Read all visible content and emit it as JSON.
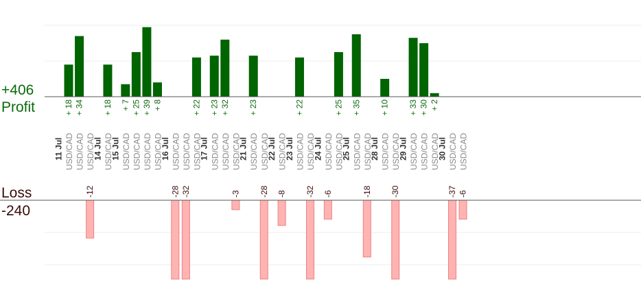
{
  "summary": {
    "profit_total": "+406",
    "profit_label": "Profit",
    "loss_label": "Loss",
    "loss_total": "-240"
  },
  "colors": {
    "profit_bar": "#006400",
    "profit_text": "#0a6b0a",
    "loss_bar": "#ffb3b3",
    "loss_bar_stroke": "#ee8080",
    "loss_text": "#3a0a0a",
    "axis_text": "#888888",
    "date_text": "#333333",
    "grid": "#eeeeee"
  },
  "chart_data": {
    "type": "bar",
    "grid": true,
    "dates": [
      {
        "label": "11 Jul",
        "trades": [
          "USD/CAD",
          "USD/CAD",
          "USD/CAD"
        ]
      },
      {
        "label": "14 Jul",
        "trades": [
          "USD/CAD"
        ]
      },
      {
        "label": "15 Jul",
        "trades": [
          "USD/CAD",
          "USD/CAD",
          "USD/CAD",
          "USD/CAD"
        ]
      },
      {
        "label": "16 Jul",
        "trades": [
          "USD/CAD",
          "USD/CAD",
          "USD/CAD"
        ]
      },
      {
        "label": "17 Jul",
        "trades": [
          "USD/CAD",
          "USD/CAD",
          "USD/CAD"
        ]
      },
      {
        "label": "21 Jul",
        "trades": [
          "USD/CAD",
          "USD/CAD"
        ]
      },
      {
        "label": "22 Jul",
        "trades": [
          "USD/CAD"
        ]
      },
      {
        "label": "23 Jul",
        "trades": [
          "USD/CAD",
          "USD/CAD"
        ]
      },
      {
        "label": "24 Jul",
        "trades": [
          "USD/CAD",
          "USD/CAD"
        ]
      },
      {
        "label": "25 Jul",
        "trades": [
          "USD/CAD",
          "USD/CAD"
        ]
      },
      {
        "label": "28 Jul",
        "trades": [
          "USD/CAD",
          "USD/CAD"
        ]
      },
      {
        "label": "29 Jul",
        "trades": [
          "USD/CAD",
          "USD/CAD",
          "USD/CAD"
        ]
      },
      {
        "label": "30 Jul",
        "trades": [
          "USD/CAD",
          "USD/CAD"
        ]
      }
    ],
    "trades": [
      {
        "date": "11 Jul",
        "value": 18,
        "label": "+ 18"
      },
      {
        "date": "11 Jul",
        "value": 34,
        "label": "+ 34"
      },
      {
        "date": "11 Jul",
        "value": -12,
        "label": "-12"
      },
      {
        "date": "14 Jul",
        "value": 18,
        "label": "+ 18"
      },
      {
        "date": "15 Jul",
        "value": 7,
        "label": "+ 7"
      },
      {
        "date": "15 Jul",
        "value": 25,
        "label": "+ 25"
      },
      {
        "date": "15 Jul",
        "value": 39,
        "label": "+ 39"
      },
      {
        "date": "15 Jul",
        "value": 8,
        "label": "+ 8"
      },
      {
        "date": "16 Jul",
        "value": -28,
        "label": "-28"
      },
      {
        "date": "16 Jul",
        "value": -32,
        "label": "-32"
      },
      {
        "date": "16 Jul",
        "value": 22,
        "label": "+ 22"
      },
      {
        "date": "17 Jul",
        "value": 23,
        "label": "+ 23"
      },
      {
        "date": "17 Jul",
        "value": 32,
        "label": "+ 32"
      },
      {
        "date": "17 Jul",
        "value": -3,
        "label": "-3"
      },
      {
        "date": "21 Jul",
        "value": 23,
        "label": "+ 23"
      },
      {
        "date": "21 Jul",
        "value": -28,
        "label": "-28"
      },
      {
        "date": "22 Jul",
        "value": -8,
        "label": "-8"
      },
      {
        "date": "23 Jul",
        "value": 22,
        "label": "+ 22"
      },
      {
        "date": "23 Jul",
        "value": -32,
        "label": "-32"
      },
      {
        "date": "24 Jul",
        "value": -6,
        "label": "-6"
      },
      {
        "date": "24 Jul",
        "value": 25,
        "label": "+ 25"
      },
      {
        "date": "25 Jul",
        "value": 35,
        "label": "+ 35"
      },
      {
        "date": "25 Jul",
        "value": -18,
        "label": "-18"
      },
      {
        "date": "28 Jul",
        "value": 10,
        "label": "+ 10"
      },
      {
        "date": "28 Jul",
        "value": -30,
        "label": "-30"
      },
      {
        "date": "29 Jul",
        "value": 33,
        "label": "+ 33"
      },
      {
        "date": "29 Jul",
        "value": 30,
        "label": "+ 30"
      },
      {
        "date": "29 Jul",
        "value": 2,
        "label": "+ 2"
      },
      {
        "date": "30 Jul",
        "value": -37,
        "label": "-37"
      },
      {
        "date": "30 Jul",
        "value": -6,
        "label": "-6"
      }
    ]
  }
}
